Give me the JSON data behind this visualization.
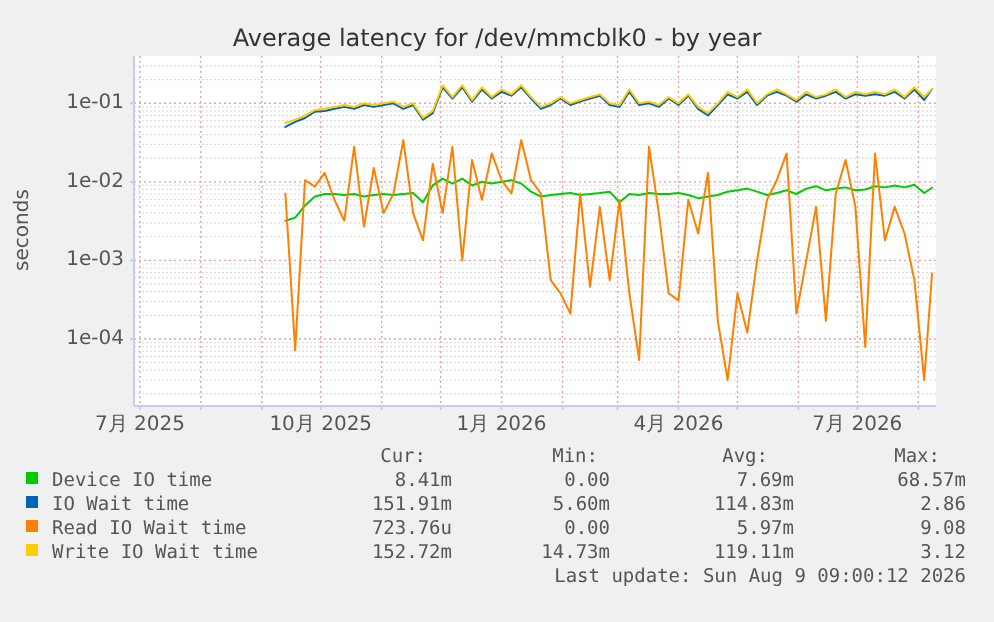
{
  "chart_data": {
    "type": "line",
    "title": "Average latency for /dev/mmcblk0 - by year",
    "ylabel": "seconds",
    "log": "y",
    "grid": true,
    "legend": "bottom",
    "line_style": "solid",
    "marker": "none",
    "xlim": [
      "2025-06-28",
      "2026-08-10"
    ],
    "ylim": [
      1.4e-05,
      0.4
    ],
    "xticks": [
      {
        "value": "2025-07-01",
        "label": "7月 2025"
      },
      {
        "value": "2025-08-01",
        "label": null
      },
      {
        "value": "2025-09-01",
        "label": null
      },
      {
        "value": "2025-10-01",
        "label": "10月 2025"
      },
      {
        "value": "2025-11-01",
        "label": null
      },
      {
        "value": "2025-12-01",
        "label": null
      },
      {
        "value": "2026-01-01",
        "label": "1月 2026"
      },
      {
        "value": "2026-02-01",
        "label": null
      },
      {
        "value": "2026-03-01",
        "label": null
      },
      {
        "value": "2026-04-01",
        "label": "4月 2026"
      },
      {
        "value": "2026-05-01",
        "label": null
      },
      {
        "value": "2026-06-01",
        "label": null
      },
      {
        "value": "2026-07-01",
        "label": "7月 2026"
      },
      {
        "value": "2026-08-01",
        "label": null
      }
    ],
    "yticks": [
      {
        "value": 0.0001,
        "label": "1e-04"
      },
      {
        "value": 0.001,
        "label": "1e-03"
      },
      {
        "value": 0.01,
        "label": "1e-02"
      },
      {
        "value": 0.1,
        "label": "1e-01"
      }
    ],
    "x": [
      "2025-09-13",
      "2025-09-18",
      "2025-09-23",
      "2025-09-28",
      "2025-10-03",
      "2025-10-08",
      "2025-10-13",
      "2025-10-18",
      "2025-10-23",
      "2025-10-28",
      "2025-11-02",
      "2025-11-07",
      "2025-11-12",
      "2025-11-17",
      "2025-11-22",
      "2025-11-27",
      "2025-12-02",
      "2025-12-07",
      "2025-12-12",
      "2025-12-17",
      "2025-12-22",
      "2025-12-27",
      "2026-01-01",
      "2026-01-06",
      "2026-01-11",
      "2026-01-16",
      "2026-01-21",
      "2026-01-26",
      "2026-01-31",
      "2026-02-05",
      "2026-02-10",
      "2026-02-15",
      "2026-02-20",
      "2026-02-25",
      "2026-03-02",
      "2026-03-07",
      "2026-03-12",
      "2026-03-17",
      "2026-03-22",
      "2026-03-27",
      "2026-04-01",
      "2026-04-06",
      "2026-04-11",
      "2026-04-16",
      "2026-04-21",
      "2026-04-26",
      "2026-05-01",
      "2026-05-06",
      "2026-05-11",
      "2026-05-16",
      "2026-05-21",
      "2026-05-26",
      "2026-05-31",
      "2026-06-05",
      "2026-06-10",
      "2026-06-15",
      "2026-06-20",
      "2026-06-25",
      "2026-06-30",
      "2026-07-05",
      "2026-07-10",
      "2026-07-15",
      "2026-07-20",
      "2026-07-25",
      "2026-07-30",
      "2026-08-04",
      "2026-08-08"
    ],
    "series": [
      {
        "name": "Device IO time",
        "color": "#00cc00",
        "values": [
          0.0032,
          0.0035,
          0.005,
          0.0065,
          0.007,
          0.007,
          0.0068,
          0.007,
          0.0065,
          0.0068,
          0.007,
          0.0068,
          0.007,
          0.0072,
          0.0055,
          0.009,
          0.011,
          0.0095,
          0.011,
          0.009,
          0.01,
          0.0095,
          0.01,
          0.0105,
          0.0095,
          0.0075,
          0.0065,
          0.0068,
          0.007,
          0.0072,
          0.0068,
          0.007,
          0.0072,
          0.0075,
          0.0055,
          0.007,
          0.0068,
          0.0072,
          0.007,
          0.007,
          0.0072,
          0.0068,
          0.0062,
          0.0065,
          0.0068,
          0.0075,
          0.0078,
          0.0082,
          0.0075,
          0.0068,
          0.0072,
          0.0078,
          0.007,
          0.0082,
          0.0088,
          0.0078,
          0.0082,
          0.0085,
          0.0078,
          0.008,
          0.0088,
          0.0085,
          0.009,
          0.0085,
          0.0092,
          0.0072,
          0.0084
        ]
      },
      {
        "name": "IO Wait time",
        "color": "#0066b3",
        "values": [
          0.05,
          0.058,
          0.065,
          0.078,
          0.08,
          0.085,
          0.09,
          0.085,
          0.095,
          0.09,
          0.095,
          0.1,
          0.085,
          0.095,
          0.062,
          0.075,
          0.16,
          0.115,
          0.16,
          0.105,
          0.15,
          0.115,
          0.14,
          0.125,
          0.16,
          0.115,
          0.085,
          0.095,
          0.115,
          0.095,
          0.105,
          0.115,
          0.125,
          0.095,
          0.09,
          0.14,
          0.095,
          0.1,
          0.09,
          0.115,
          0.095,
          0.125,
          0.085,
          0.07,
          0.095,
          0.13,
          0.115,
          0.14,
          0.095,
          0.125,
          0.14,
          0.125,
          0.105,
          0.13,
          0.115,
          0.125,
          0.14,
          0.115,
          0.13,
          0.125,
          0.13,
          0.125,
          0.14,
          0.115,
          0.15,
          0.11,
          0.152
        ]
      },
      {
        "name": "Read IO Wait time",
        "color": "#ff8000",
        "values": [
          0.0071,
          7.2e-05,
          0.0105,
          0.0087,
          0.013,
          0.0059,
          0.0032,
          0.028,
          0.0027,
          0.015,
          0.004,
          0.0071,
          0.034,
          0.004,
          0.0018,
          0.017,
          0.004,
          0.028,
          0.001,
          0.019,
          0.0059,
          0.023,
          0.0105,
          0.0071,
          0.034,
          0.0105,
          0.0071,
          0.00056,
          0.00038,
          0.00021,
          0.0071,
          0.00046,
          0.0048,
          0.00056,
          0.0059,
          0.00038,
          5.4e-05,
          0.028,
          0.004,
          0.00038,
          0.00031,
          0.0059,
          0.0022,
          0.013,
          0.00017,
          3e-05,
          0.00038,
          0.00012,
          0.001,
          0.0059,
          0.0105,
          0.023,
          0.00021,
          0.001,
          0.0048,
          0.00017,
          0.0071,
          0.019,
          0.0048,
          7.9e-05,
          0.023,
          0.0018,
          0.0048,
          0.0022,
          0.00056,
          3e-05,
          0.00068
        ]
      },
      {
        "name": "Write IO Wait time",
        "color": "#ffcc00",
        "values": [
          0.056,
          0.062,
          0.07,
          0.082,
          0.085,
          0.09,
          0.095,
          0.09,
          0.1,
          0.095,
          0.1,
          0.105,
          0.09,
          0.1,
          0.065,
          0.08,
          0.17,
          0.12,
          0.17,
          0.11,
          0.16,
          0.12,
          0.15,
          0.13,
          0.17,
          0.12,
          0.09,
          0.1,
          0.12,
          0.1,
          0.11,
          0.12,
          0.13,
          0.1,
          0.095,
          0.15,
          0.1,
          0.105,
          0.095,
          0.12,
          0.1,
          0.13,
          0.09,
          0.075,
          0.1,
          0.14,
          0.12,
          0.15,
          0.1,
          0.13,
          0.15,
          0.13,
          0.11,
          0.14,
          0.12,
          0.13,
          0.15,
          0.12,
          0.14,
          0.13,
          0.14,
          0.13,
          0.15,
          0.12,
          0.16,
          0.12,
          0.153
        ]
      }
    ],
    "annotations": [
      "Cur:",
      "Min:",
      "Avg:",
      "Max:",
      "8.41m",
      "0.00",
      "7.69m",
      "68.57m",
      "151.91m",
      "5.60m",
      "114.83m",
      "2.86",
      "723.76u",
      "0.00",
      "5.97m",
      "9.08",
      "152.72m",
      "14.73m",
      "119.11m",
      "3.12",
      "Last update: Sun Aug  9 09:00:12 2026"
    ]
  }
}
